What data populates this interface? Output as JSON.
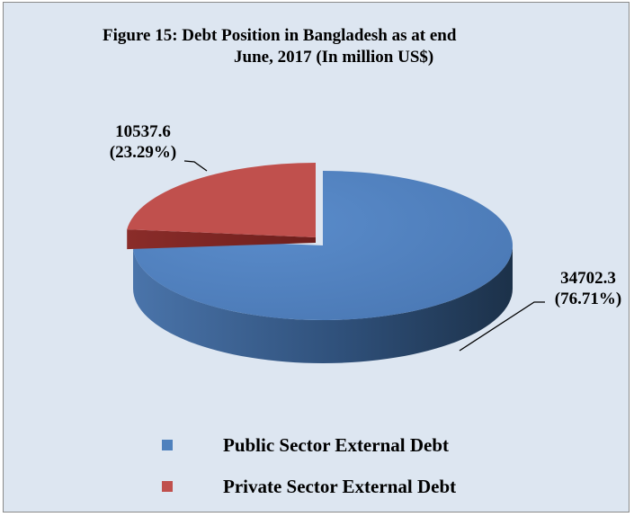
{
  "chart_data": {
    "type": "pie",
    "title": "Figure 15: Debt Position in Bangladesh as at end June, 2017 (In million US$)",
    "title_lines": [
      "Figure 15: Debt Position in Bangladesh as at end",
      "June, 2017 (In million US$)"
    ],
    "series": [
      {
        "name": "",
        "slices": [
          {
            "label": "Public Sector External Debt",
            "value": 34702.3,
            "value_text": "34702.3",
            "percent_text": "(76.71%)",
            "color": "#4f81bd"
          },
          {
            "label": "Private Sector External Debt",
            "value": 10537.6,
            "value_text": "10537.6",
            "percent_text": "(23.29%)",
            "color": "#c0504d"
          }
        ]
      }
    ],
    "style": "3d-exploded",
    "legend_position": "bottom",
    "background_color": "#dde6f1"
  }
}
